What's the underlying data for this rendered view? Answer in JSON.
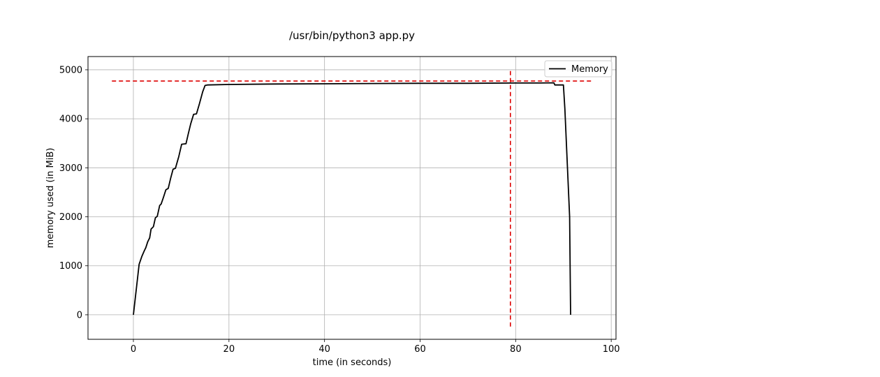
{
  "chart_data": {
    "type": "line",
    "title": "/usr/bin/python3 app.py",
    "xlabel": "time (in seconds)",
    "ylabel": "memory used (in MiB)",
    "xlim": [
      -9.5,
      101
    ],
    "ylim": [
      -500,
      5270
    ],
    "xticks": [
      0,
      20,
      40,
      60,
      80,
      100
    ],
    "yticks": [
      0,
      1000,
      2000,
      3000,
      4000,
      5000
    ],
    "grid": true,
    "legend_position": "top-right",
    "series": [
      {
        "name": "Memory",
        "color": "#000000",
        "x": [
          0,
          1.2,
          1.8,
          2.3,
          2.6,
          3.0,
          3.4,
          3.7,
          4.2,
          4.6,
          5.0,
          5.5,
          5.8,
          6.3,
          6.8,
          7.3,
          7.8,
          8.3,
          8.8,
          9.5,
          10.1,
          11.0,
          11.5,
          12.0,
          12.6,
          13.2,
          13.8,
          14.5,
          15.0,
          15.5,
          20,
          30,
          40,
          50,
          60,
          70,
          80,
          85,
          88.0,
          88.2,
          90.0,
          90.3,
          91.3,
          91.5
        ],
        "y": [
          0,
          1030,
          1200,
          1310,
          1370,
          1490,
          1570,
          1750,
          1800,
          1980,
          2010,
          2230,
          2260,
          2400,
          2550,
          2580,
          2790,
          2970,
          2990,
          3230,
          3480,
          3490,
          3700,
          3900,
          4090,
          4100,
          4300,
          4550,
          4680,
          4690,
          4700,
          4710,
          4715,
          4720,
          4725,
          4725,
          4730,
          4730,
          4735,
          4690,
          4690,
          4200,
          2000,
          0
        ]
      }
    ],
    "reference_lines": [
      {
        "orientation": "horizontal",
        "y": 4770,
        "x_range": [
          -4.5,
          96
        ],
        "color": "#dd0000",
        "style": "dashed"
      },
      {
        "orientation": "vertical",
        "x": 78.9,
        "y_range": [
          -240,
          5020
        ],
        "color": "#dd0000",
        "style": "dashed"
      }
    ]
  }
}
